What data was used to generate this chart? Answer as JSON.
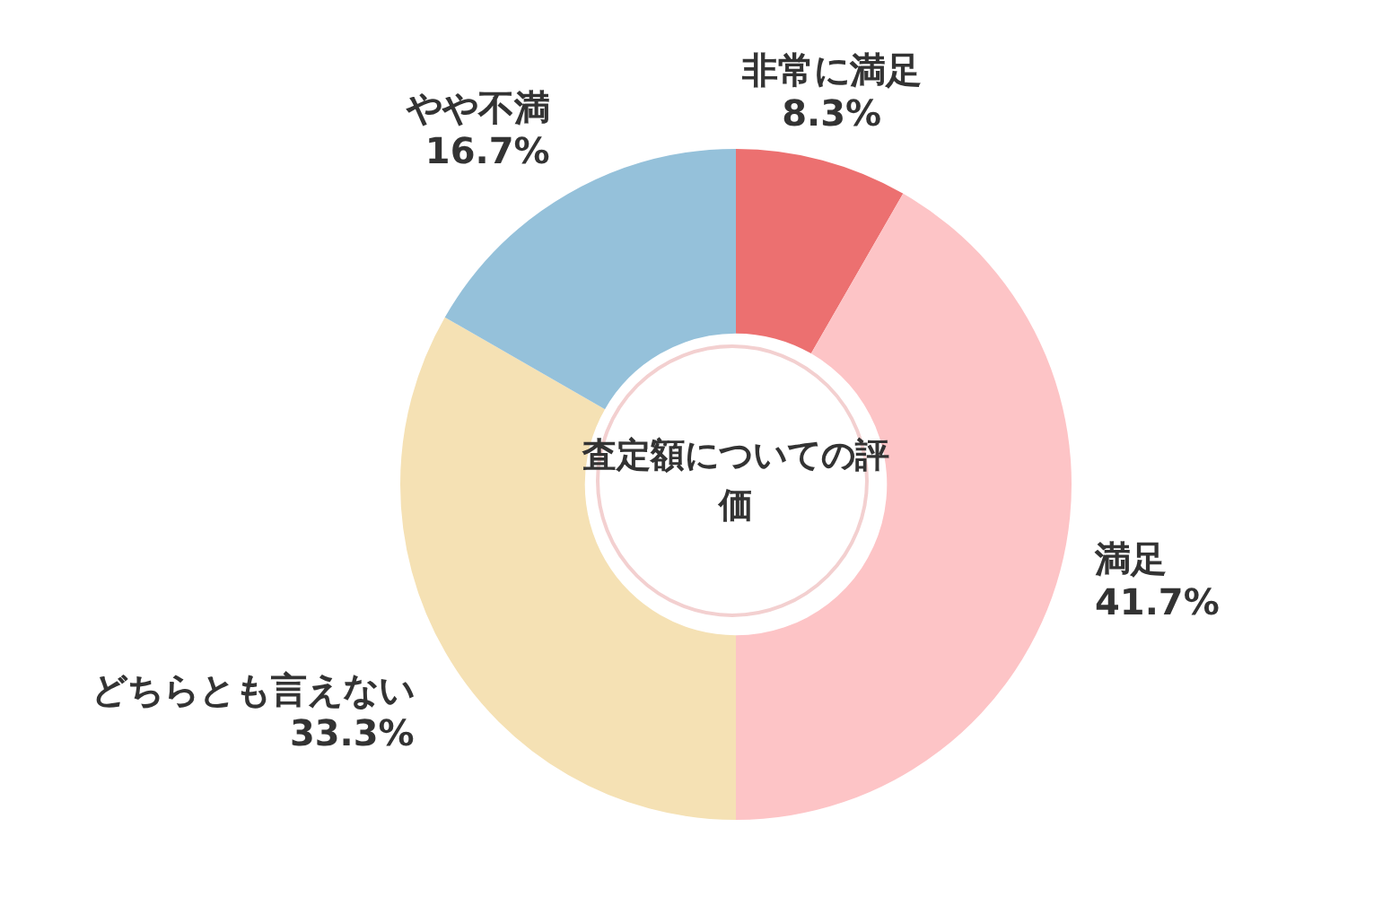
{
  "chart_data": {
    "type": "donut",
    "title": "査定額についての評価",
    "categories": [
      "非常に満足",
      "満足",
      "どちらとも言えない",
      "やや不満"
    ],
    "values": [
      8.3,
      41.7,
      33.3,
      16.7
    ],
    "colors": [
      "#ec7070",
      "#fdc4c6",
      "#f5e1b4",
      "#95c1da"
    ],
    "value_labels": [
      "8.3%",
      "41.7%",
      "33.3%",
      "16.7%"
    ],
    "legend": false
  }
}
